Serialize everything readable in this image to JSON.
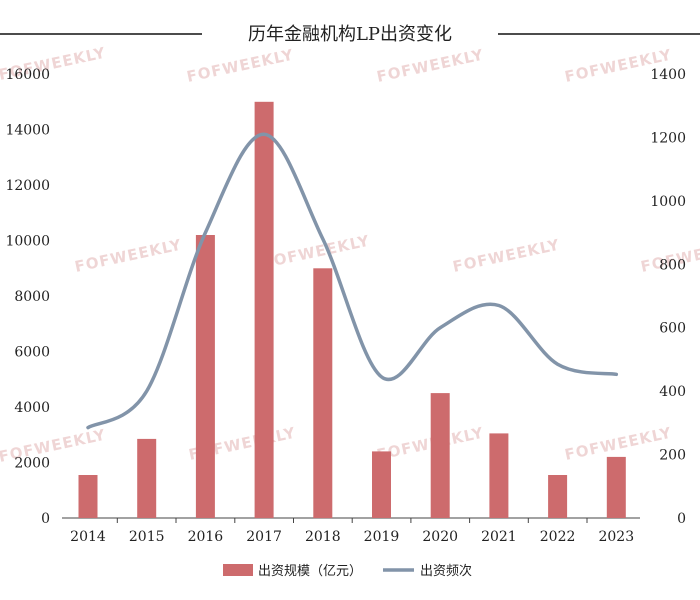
{
  "watermark": "FOFWEEKLY",
  "chart_data": {
    "type": "bar+line",
    "title": "历年金融机构LP出资变化",
    "categories": [
      "2014",
      "2015",
      "2016",
      "2017",
      "2018",
      "2019",
      "2020",
      "2021",
      "2022",
      "2023"
    ],
    "series": [
      {
        "name": "出资规模（亿元）",
        "type": "bar",
        "axis": "left",
        "color": "#cd6b6d",
        "values": [
          1550,
          2850,
          10200,
          15000,
          9000,
          2400,
          4500,
          3050,
          1550,
          2200
        ]
      },
      {
        "name": "出资频次",
        "type": "line",
        "axis": "right",
        "color": "#8294a9",
        "values": [
          285,
          400,
          900,
          1210,
          880,
          445,
          600,
          670,
          485,
          453
        ]
      }
    ],
    "y_left": {
      "min": 0,
      "max": 16000,
      "ticks": [
        "0",
        "2000",
        "4000",
        "6000",
        "8000",
        "10000",
        "12000",
        "14000",
        "16000"
      ]
    },
    "y_right": {
      "min": 0,
      "max": 1400,
      "ticks": [
        "0",
        "200",
        "400",
        "600",
        "800",
        "1000",
        "1200",
        "1400"
      ]
    },
    "grid": false,
    "legend_position": "bottom"
  }
}
